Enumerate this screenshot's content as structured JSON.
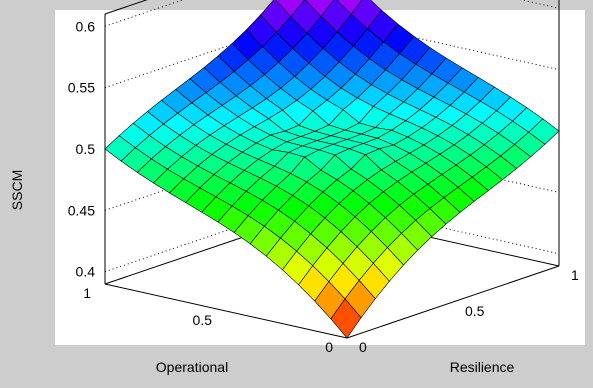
{
  "chart_data": {
    "type": "surface",
    "title": "",
    "xlabel": "Operational",
    "ylabel": "Resilience",
    "zlabel": "SSCM",
    "xlim": [
      0,
      1
    ],
    "ylim": [
      0,
      1
    ],
    "zlim": [
      0.39,
      0.61
    ],
    "grid": true,
    "colormap": "hsv",
    "x_ticks": [
      "0",
      "0.5",
      "1"
    ],
    "y_ticks": [
      "0",
      "0.5",
      "1"
    ],
    "z_ticks": [
      "0.4",
      "0.45",
      "0.5",
      "0.55",
      "0.6"
    ],
    "grid_size": 15,
    "surface_model": "step function of distance from centre (0.5, 0.5)",
    "center_value": 0.5,
    "max_value": 0.61,
    "min_value": 0.39,
    "plateau_value_at_axis_ends": 0.5
  }
}
